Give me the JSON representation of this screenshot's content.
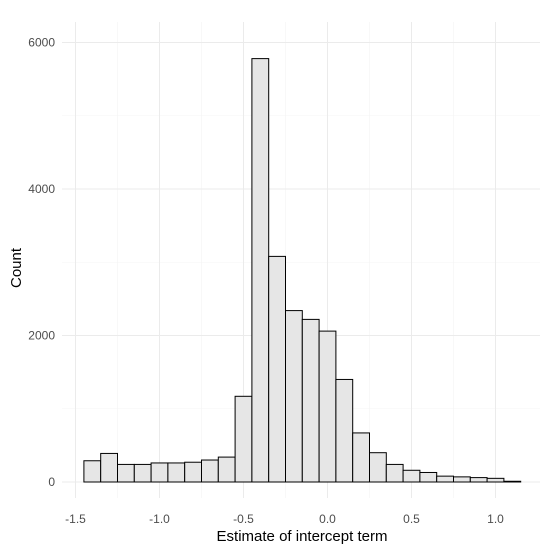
{
  "chart_data": {
    "type": "bar",
    "title": "",
    "xlabel": "Estimate of intercept term",
    "ylabel": "Count",
    "xlim": [
      -1.55,
      1.2
    ],
    "ylim": [
      0,
      6100
    ],
    "x_ticks": [
      -1.5,
      -1.0,
      -0.5,
      0.0,
      0.5,
      1.0
    ],
    "x_tick_labels": [
      "-1.5",
      "-1.0",
      "-0.5",
      "0.0",
      "0.5",
      "1.0"
    ],
    "y_ticks": [
      0,
      2000,
      4000,
      6000
    ],
    "y_tick_labels": [
      "0",
      "2000",
      "4000",
      "6000"
    ],
    "grid": true,
    "bin_width": 0.1,
    "bins": [
      {
        "x0": -1.45,
        "count": 290
      },
      {
        "x0": -1.35,
        "count": 390
      },
      {
        "x0": -1.25,
        "count": 240
      },
      {
        "x0": -1.15,
        "count": 240
      },
      {
        "x0": -1.05,
        "count": 260
      },
      {
        "x0": -0.95,
        "count": 260
      },
      {
        "x0": -0.85,
        "count": 270
      },
      {
        "x0": -0.75,
        "count": 300
      },
      {
        "x0": -0.65,
        "count": 340
      },
      {
        "x0": -0.55,
        "count": 1170
      },
      {
        "x0": -0.45,
        "count": 5780
      },
      {
        "x0": -0.35,
        "count": 3080
      },
      {
        "x0": -0.25,
        "count": 2340
      },
      {
        "x0": -0.15,
        "count": 2220
      },
      {
        "x0": -0.05,
        "count": 2060
      },
      {
        "x0": 0.05,
        "count": 1400
      },
      {
        "x0": 0.15,
        "count": 670
      },
      {
        "x0": 0.25,
        "count": 400
      },
      {
        "x0": 0.35,
        "count": 240
      },
      {
        "x0": 0.45,
        "count": 160
      },
      {
        "x0": 0.55,
        "count": 130
      },
      {
        "x0": 0.65,
        "count": 80
      },
      {
        "x0": 0.75,
        "count": 70
      },
      {
        "x0": 0.85,
        "count": 60
      },
      {
        "x0": 0.95,
        "count": 50
      },
      {
        "x0": 1.05,
        "count": 10
      }
    ]
  }
}
